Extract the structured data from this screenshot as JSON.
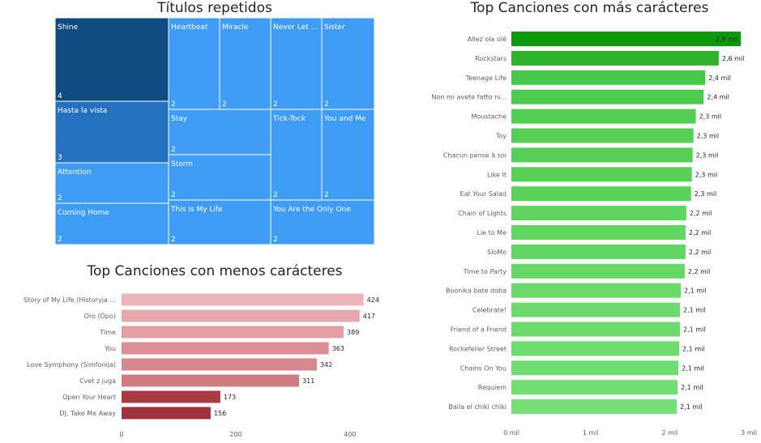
{
  "chart_data": [
    {
      "type": "treemap",
      "title": "Títulos repetidos",
      "items": [
        {
          "label": "Shine",
          "value": 4
        },
        {
          "label": "Hasta la vista",
          "value": 3
        },
        {
          "label": "Attention",
          "value": 2
        },
        {
          "label": "Coming Home",
          "value": 2
        },
        {
          "label": "Heartbeat",
          "value": 2
        },
        {
          "label": "Miracle",
          "value": 2
        },
        {
          "label": "Never Let ...",
          "value": 2
        },
        {
          "label": "Sister",
          "value": 2
        },
        {
          "label": "Stay",
          "value": 2
        },
        {
          "label": "Tick-Tock",
          "value": 2
        },
        {
          "label": "You and Me",
          "value": 2
        },
        {
          "label": "Storm",
          "value": 2
        },
        {
          "label": "This Is My Life",
          "value": 2
        },
        {
          "label": "You Are the Only One",
          "value": 2
        }
      ],
      "colors": {
        "Shine": "#0f4a80",
        "Hasta la vista": "#2472bf",
        "default": "#3e9cf5"
      }
    },
    {
      "type": "bar",
      "orientation": "horizontal",
      "title": "Top Canciones con menos carácteres",
      "categories": [
        "Story of My Life (Historyja ...",
        "Oro (Opo)",
        "Time",
        "You",
        "Love Symphony (Simfonija)",
        "Cvet z juga",
        "Open Your Heart",
        "DJ, Take Me Away"
      ],
      "values": [
        424,
        417,
        389,
        363,
        342,
        311,
        173,
        156
      ],
      "value_labels": [
        "424",
        "417",
        "389",
        "363",
        "342",
        "311",
        "173",
        "156"
      ],
      "xlim": [
        0,
        450
      ],
      "ticks": [
        0,
        200,
        400
      ],
      "tick_labels": [
        "0",
        "200",
        "400"
      ],
      "colors": [
        "#eeb4b9",
        "#e8a7ad",
        "#e49ea4",
        "#dc8f96",
        "#d7878e",
        "#d17a81",
        "#a83a44",
        "#a1323d"
      ]
    },
    {
      "type": "bar",
      "orientation": "horizontal",
      "title": "Top Canciones con más carácteres",
      "categories": [
        "Allez ola olé",
        "Rockstars",
        "Teenage Life",
        "Non mi avete fatto ni...",
        "Moustache",
        "Toy",
        "Chacun pense à soi",
        "Like It",
        "Eat Your Salad",
        "Chain of Lights",
        "Lie to Me",
        "SloMo",
        "Time to Party",
        "Boonika bate doba",
        "Celebrate!",
        "Friend of a Friend",
        "Rockefeller Street",
        "Chains On You",
        "Requiem",
        "Baila el chiki chiki"
      ],
      "values": [
        2900,
        2620,
        2450,
        2430,
        2330,
        2300,
        2290,
        2280,
        2270,
        2210,
        2200,
        2200,
        2190,
        2140,
        2130,
        2130,
        2120,
        2110,
        2100,
        2090
      ],
      "value_labels": [
        "2,9 mil",
        "2,6 mil",
        "2,4 mil",
        "2,4 mil",
        "2,3 mil",
        "2,3 mil",
        "2,3 mil",
        "2,3 mil",
        "2,3 mil",
        "2,2 mil",
        "2,2 mil",
        "2,2 mil",
        "2,2 mil",
        "2,1 mil",
        "2,1 mil",
        "2,1 mil",
        "2,1 mil",
        "2,1 mil",
        "2,1 mil",
        "2,1 mil"
      ],
      "xlim": [
        0,
        3000
      ],
      "ticks": [
        0,
        1000,
        2000,
        3000
      ],
      "tick_labels": [
        "0 mil",
        "1 mil",
        "2 mil",
        "3 mil"
      ],
      "colors": [
        "#0c9a0c",
        "#2bb32b",
        "#48c848",
        "#4cca4c",
        "#52ce52",
        "#55cf55",
        "#56cf56",
        "#58d058",
        "#5ad25a",
        "#5fd55f",
        "#62d662",
        "#62d662",
        "#64d764",
        "#6ada6a",
        "#6cdb6c",
        "#6cdb6c",
        "#6edc6e",
        "#70dd70",
        "#72de72",
        "#74df74"
      ]
    }
  ]
}
